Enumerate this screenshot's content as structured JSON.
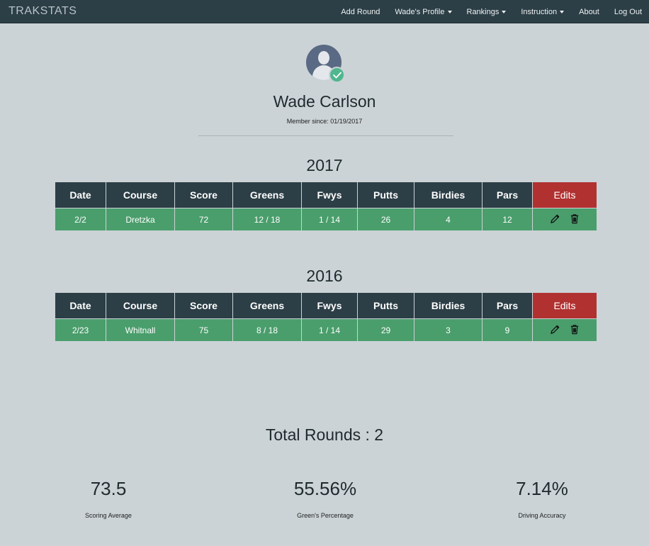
{
  "nav": {
    "brand": "TRAKSTATS",
    "items": [
      {
        "label": "Add Round",
        "dropdown": false
      },
      {
        "label": "Wade's Profile",
        "dropdown": true
      },
      {
        "label": "Rankings",
        "dropdown": true
      },
      {
        "label": "Instruction",
        "dropdown": true
      },
      {
        "label": "About",
        "dropdown": false
      },
      {
        "label": "Log Out",
        "dropdown": false
      }
    ]
  },
  "profile": {
    "name": "Wade Carlson",
    "member_since": "Member since: 01/19/2017",
    "avatar_icon": "user-avatar-icon",
    "badge_icon": "check-icon"
  },
  "columns": [
    "Date",
    "Course",
    "Score",
    "Greens",
    "Fwys",
    "Putts",
    "Birdies",
    "Pars",
    "Edits"
  ],
  "seasons": [
    {
      "year": "2017",
      "rows": [
        {
          "date": "2/2",
          "course": "Dretzka",
          "score": "72",
          "greens": "12 / 18",
          "fwys": "1 / 14",
          "putts": "26",
          "birdies": "4",
          "pars": "12"
        }
      ]
    },
    {
      "year": "2016",
      "rows": [
        {
          "date": "2/23",
          "course": "Whitnall",
          "score": "75",
          "greens": "8 / 18",
          "fwys": "1 / 14",
          "putts": "29",
          "birdies": "3",
          "pars": "9"
        }
      ]
    }
  ],
  "summary": {
    "total_rounds": "Total Rounds : 2",
    "stats": [
      {
        "value": "73.5",
        "label": "Scoring Average"
      },
      {
        "value": "55.56%",
        "label": "Green's Percentage"
      },
      {
        "value": "7.14%",
        "label": "Driving Accuracy"
      }
    ]
  },
  "colors": {
    "background": "#cbd3d6",
    "navbar": "#2c3e46",
    "header": "#2c3e46",
    "edits_header": "#b13131",
    "row": "#4a9e6c",
    "badge": "#4fb68d"
  }
}
